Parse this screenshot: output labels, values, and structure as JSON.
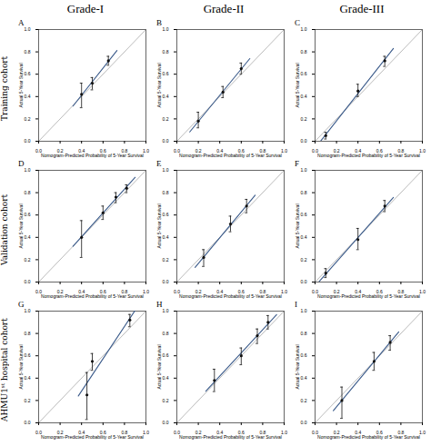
{
  "col_titles": [
    "Grade-I",
    "Grade-II",
    "Grade-III"
  ],
  "row_labels": [
    "Training cohort",
    "Validation cohort",
    "AHMU1ˢᵗ hospital cohort"
  ],
  "chart_data": [
    {
      "type": "calibration",
      "panel_label": "A",
      "xlabel": "Nomogram-Predicted Probability of 5-Year Survival",
      "ylabel": "Actual 5-Year Survival",
      "x": [
        0.4,
        0.5,
        0.65
      ],
      "values": [
        0.42,
        0.52,
        0.72
      ],
      "errors_lo": [
        0.12,
        0.06,
        0.04
      ],
      "errors_hi": [
        0.1,
        0.05,
        0.04
      ],
      "color": "#111111",
      "fit_line": {
        "x": [
          0.32,
          0.73
        ],
        "y": [
          0.315263,
          0.811579
        ],
        "color": "#3a5a8a"
      },
      "reference_line": {
        "x": [
          0,
          1
        ],
        "y": [
          0,
          1
        ],
        "color": "#aaaaaa"
      },
      "xlim": [
        0.0,
        1.0
      ],
      "ylim": [
        0.0,
        1.0
      ],
      "xticks": [
        {
          "value": 0.0,
          "label": "0.0"
        },
        0.2,
        0.4,
        0.6,
        0.8,
        {
          "value": 1.0,
          "label": "1.0"
        }
      ],
      "yticks": [
        {
          "value": 0.0,
          "label": "0.0"
        },
        0.2,
        0.4,
        0.6,
        0.8,
        {
          "value": 1.0,
          "label": "1.0"
        }
      ]
    },
    {
      "type": "calibration",
      "panel_label": "B",
      "xlabel": "Nomogram-Predicted Probability of 5-Year Survival",
      "ylabel": "Actual 5-Year Survival",
      "x": [
        0.2,
        0.43,
        0.6
      ],
      "values": [
        0.18,
        0.44,
        0.65
      ],
      "errors_lo": [
        0.06,
        0.05,
        0.05
      ],
      "errors_hi": [
        0.08,
        0.05,
        0.05
      ],
      "color": "#111111",
      "fit_line": {
        "x": [
          0.12,
          0.68
        ],
        "y": [
          0.083321,
          0.739897
        ],
        "color": "#3a5a8a"
      },
      "reference_line": {
        "x": [
          0,
          1
        ],
        "y": [
          0,
          1
        ],
        "color": "#aaaaaa"
      },
      "xlim": [
        0.0,
        1.0
      ],
      "ylim": [
        0.0,
        1.0
      ],
      "xticks": [
        {
          "value": 0.0,
          "label": "0.0"
        },
        0.2,
        0.4,
        0.6,
        0.8,
        {
          "value": 1.0,
          "label": "1.0"
        }
      ],
      "yticks": [
        {
          "value": 0.0,
          "label": "0.0"
        },
        0.2,
        0.4,
        0.6,
        0.8,
        {
          "value": 1.0,
          "label": "1.0"
        }
      ]
    },
    {
      "type": "calibration",
      "panel_label": "C",
      "xlabel": "Nomogram-Predicted Probability of 5-Year Survival",
      "ylabel": "Actual 5-Year Survival",
      "x": [
        0.1,
        0.4,
        0.65
      ],
      "values": [
        0.05,
        0.45,
        0.72
      ],
      "errors_lo": [
        0.03,
        0.05,
        0.05
      ],
      "errors_hi": [
        0.03,
        0.06,
        0.04
      ],
      "color": "#111111",
      "fit_line": {
        "x": [
          0.02,
          0.73
        ],
        "y": [
          -0.037318,
          0.830286
        ],
        "color": "#3a5a8a"
      },
      "reference_line": {
        "x": [
          0,
          1
        ],
        "y": [
          0,
          1
        ],
        "color": "#aaaaaa"
      },
      "xlim": [
        0.0,
        1.0
      ],
      "ylim": [
        0.0,
        1.0
      ],
      "xticks": [
        {
          "value": 0.0,
          "label": "0.0"
        },
        0.2,
        0.4,
        0.6,
        0.8,
        {
          "value": 1.0,
          "label": "1.0"
        }
      ],
      "yticks": [
        {
          "value": 0.0,
          "label": "0.0"
        },
        0.2,
        0.4,
        0.6,
        0.8,
        {
          "value": 1.0,
          "label": "1.0"
        }
      ]
    },
    {
      "type": "calibration",
      "panel_label": "D",
      "xlabel": "Nomogram-Predicted Probability of 5-Year Survival",
      "ylabel": "Actual 5-Year Survival",
      "x": [
        0.4,
        0.6,
        0.72,
        0.82
      ],
      "values": [
        0.4,
        0.62,
        0.76,
        0.84
      ],
      "errors_lo": [
        0.18,
        0.06,
        0.05,
        0.04
      ],
      "errors_hi": [
        0.15,
        0.06,
        0.04,
        0.03
      ],
      "color": "#111111",
      "fit_line": {
        "x": [
          0.32,
          0.9
        ],
        "y": [
          0.319407,
          0.937324
        ],
        "color": "#3a5a8a"
      },
      "reference_line": {
        "x": [
          0,
          1
        ],
        "y": [
          0,
          1
        ],
        "color": "#aaaaaa"
      },
      "xlim": [
        0.0,
        1.0
      ],
      "ylim": [
        0.0,
        1.0
      ],
      "xticks": [
        {
          "value": 0.0,
          "label": "0.0"
        },
        0.2,
        0.4,
        0.6,
        0.8,
        {
          "value": 1.0,
          "label": "1.0"
        }
      ],
      "yticks": [
        {
          "value": 0.0,
          "label": "0.0"
        },
        0.2,
        0.4,
        0.6,
        0.8,
        {
          "value": 1.0,
          "label": "1.0"
        }
      ]
    },
    {
      "type": "calibration",
      "panel_label": "E",
      "xlabel": "Nomogram-Predicted Probability of 5-Year Survival",
      "ylabel": "Actual 5-Year Survival",
      "x": [
        0.25,
        0.5,
        0.65
      ],
      "values": [
        0.22,
        0.52,
        0.68
      ],
      "errors_lo": [
        0.08,
        0.07,
        0.06
      ],
      "errors_hi": [
        0.07,
        0.07,
        0.06
      ],
      "color": "#111111",
      "fit_line": {
        "x": [
          0.17,
          0.73
        ],
        "y": [
          0.130653,
          0.77751
        ],
        "color": "#3a5a8a"
      },
      "reference_line": {
        "x": [
          0,
          1
        ],
        "y": [
          0,
          1
        ],
        "color": "#aaaaaa"
      },
      "xlim": [
        0.0,
        1.0
      ],
      "ylim": [
        0.0,
        1.0
      ],
      "xticks": [
        {
          "value": 0.0,
          "label": "0.0"
        },
        0.2,
        0.4,
        0.6,
        0.8,
        {
          "value": 1.0,
          "label": "1.0"
        }
      ],
      "yticks": [
        {
          "value": 0.0,
          "label": "0.0"
        },
        0.2,
        0.4,
        0.6,
        0.8,
        {
          "value": 1.0,
          "label": "1.0"
        }
      ]
    },
    {
      "type": "calibration",
      "panel_label": "F",
      "xlabel": "Nomogram-Predicted Probability of 5-Year Survival",
      "ylabel": "Actual 5-Year Survival",
      "x": [
        0.1,
        0.4,
        0.65
      ],
      "values": [
        0.08,
        0.38,
        0.68
      ],
      "errors_lo": [
        0.04,
        0.09,
        0.05
      ],
      "errors_hi": [
        0.04,
        0.1,
        0.05
      ],
      "color": "#111111",
      "fit_line": {
        "x": [
          0.02,
          0.73
        ],
        "y": [
          -0.015275,
          0.757143
        ],
        "color": "#3a5a8a"
      },
      "reference_line": {
        "x": [
          0,
          1
        ],
        "y": [
          0,
          1
        ],
        "color": "#aaaaaa"
      },
      "xlim": [
        0.0,
        1.0
      ],
      "ylim": [
        0.0,
        1.0
      ],
      "xticks": [
        {
          "value": 0.0,
          "label": "0.0"
        },
        0.2,
        0.4,
        0.6,
        0.8,
        {
          "value": 1.0,
          "label": "1.0"
        }
      ],
      "yticks": [
        {
          "value": 0.0,
          "label": "0.0"
        },
        0.2,
        0.4,
        0.6,
        0.8,
        {
          "value": 1.0,
          "label": "1.0"
        }
      ]
    },
    {
      "type": "calibration",
      "panel_label": "G",
      "xlabel": "Nomogram-Predicted Probability of 5-Year Survival",
      "ylabel": "Actual 5-Year Survival",
      "x": [
        0.45,
        0.5,
        0.85
      ],
      "values": [
        0.25,
        0.55,
        0.92
      ],
      "errors_lo": [
        0.22,
        0.08,
        0.06
      ],
      "errors_hi": [
        0.2,
        0.07,
        0.05
      ],
      "color": "#111111",
      "fit_line": {
        "x": [
          0.37,
          0.93
        ],
        "y": [
          0.240438,
          1.050965
        ],
        "color": "#3a5a8a"
      },
      "reference_line": {
        "x": [
          0,
          1
        ],
        "y": [
          0,
          1
        ],
        "color": "#aaaaaa"
      },
      "xlim": [
        0.0,
        1.0
      ],
      "ylim": [
        0.0,
        1.0
      ],
      "xticks": [
        {
          "value": 0.0,
          "label": "0.0"
        },
        0.2,
        0.4,
        0.6,
        0.8,
        {
          "value": 1.0,
          "label": "1.0"
        }
      ],
      "yticks": [
        {
          "value": 0.0,
          "label": "0.0"
        },
        0.2,
        0.4,
        0.6,
        0.8,
        {
          "value": 1.0,
          "label": "1.0"
        }
      ]
    },
    {
      "type": "calibration",
      "panel_label": "H",
      "xlabel": "Nomogram-Predicted Probability of 5-Year Survival",
      "ylabel": "Actual 5-Year Survival",
      "x": [
        0.35,
        0.6,
        0.75,
        0.85
      ],
      "values": [
        0.38,
        0.6,
        0.78,
        0.9
      ],
      "errors_lo": [
        0.1,
        0.08,
        0.07,
        0.06
      ],
      "errors_hi": [
        0.1,
        0.07,
        0.06,
        0.06
      ],
      "color": "#111111",
      "fit_line": {
        "x": [
          0.27,
          0.93
        ],
        "y": [
          0.283577,
          0.968581
        ],
        "color": "#3a5a8a"
      },
      "reference_line": {
        "x": [
          0,
          1
        ],
        "y": [
          0,
          1
        ],
        "color": "#aaaaaa"
      },
      "xlim": [
        0.0,
        1.0
      ],
      "ylim": [
        0.0,
        1.0
      ],
      "xticks": [
        {
          "value": 0.0,
          "label": "0.0"
        },
        0.2,
        0.4,
        0.6,
        0.8,
        {
          "value": 1.0,
          "label": "1.0"
        }
      ],
      "yticks": [
        {
          "value": 0.0,
          "label": "0.0"
        },
        0.2,
        0.4,
        0.6,
        0.8,
        {
          "value": 1.0,
          "label": "1.0"
        }
      ]
    },
    {
      "type": "calibration",
      "panel_label": "I",
      "xlabel": "Nomogram-Predicted Probability of 5-Year Survival",
      "ylabel": "Actual 5-Year Survival",
      "x": [
        0.25,
        0.55,
        0.7
      ],
      "values": [
        0.2,
        0.55,
        0.72
      ],
      "errors_lo": [
        0.16,
        0.08,
        0.07
      ],
      "errors_hi": [
        0.12,
        0.08,
        0.06
      ],
      "color": "#111111",
      "fit_line": {
        "x": [
          0.17,
          0.78
        ],
        "y": [
          0.108143,
          0.814
        ],
        "color": "#3a5a8a"
      },
      "reference_line": {
        "x": [
          0,
          1
        ],
        "y": [
          0,
          1
        ],
        "color": "#aaaaaa"
      },
      "xlim": [
        0.0,
        1.0
      ],
      "ylim": [
        0.0,
        1.0
      ],
      "xticks": [
        {
          "value": 0.0,
          "label": "0.0"
        },
        0.2,
        0.4,
        0.6,
        0.8,
        {
          "value": 1.0,
          "label": "1.0"
        }
      ],
      "yticks": [
        {
          "value": 0.0,
          "label": "0.0"
        },
        0.2,
        0.4,
        0.6,
        0.8,
        {
          "value": 1.0,
          "label": "1.0"
        }
      ]
    }
  ]
}
